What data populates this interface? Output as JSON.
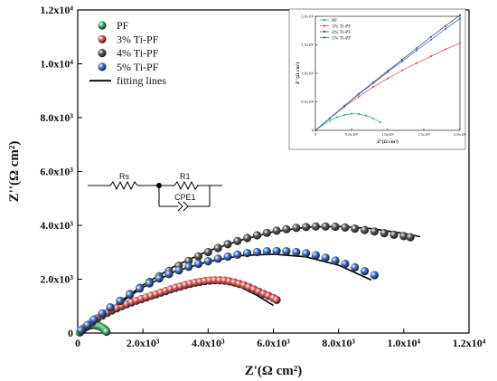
{
  "chart_data": {
    "type": "scatter",
    "title": "",
    "xlabel": "Z'(Ω cm²)",
    "ylabel": "Z''(Ω cm²)",
    "xlim": [
      0,
      12000
    ],
    "ylim": [
      0,
      12000
    ],
    "x_ticks": [
      "0",
      "2.0x10³",
      "4.0x10³",
      "6.0x10³",
      "8.0x10³",
      "1.0x10⁴",
      "1.2x10⁴"
    ],
    "y_ticks": [
      "0",
      "2.0x10³",
      "4.0x10³",
      "6.0x10³",
      "8.0x10³",
      "1.0x10⁴",
      "1.2x10⁴"
    ],
    "legend_position": "top-left",
    "fit_label": "fitting lines",
    "series": [
      {
        "name": "PF",
        "color": "#3cb371",
        "x": [
          60,
          110,
          160,
          210,
          270,
          330,
          390,
          450,
          510,
          570,
          630,
          690,
          740,
          790,
          830,
          860,
          880
        ],
        "y": [
          20,
          80,
          140,
          190,
          235,
          265,
          285,
          295,
          295,
          285,
          265,
          240,
          210,
          175,
          135,
          95,
          50
        ],
        "fit_x": [
          40,
          150,
          300,
          450,
          600,
          750,
          860
        ],
        "fit_y": [
          30,
          160,
          270,
          300,
          275,
          190,
          60
        ]
      },
      {
        "name": "3% Ti-PF",
        "color": "#e05555",
        "x": [
          150,
          300,
          450,
          600,
          750,
          900,
          1050,
          1200,
          1350,
          1500,
          1650,
          1800,
          1950,
          2100,
          2250,
          2400,
          2550,
          2700,
          2850,
          3000,
          3150,
          3300,
          3450,
          3600,
          3750,
          3900,
          4050,
          4200,
          4350,
          4500,
          4650,
          4800,
          4950,
          5100,
          5250,
          5400,
          5550,
          5700,
          5850,
          6000,
          6100
        ],
        "y": [
          150,
          290,
          420,
          540,
          650,
          750,
          840,
          920,
          1000,
          1070,
          1140,
          1200,
          1260,
          1320,
          1380,
          1440,
          1500,
          1560,
          1620,
          1680,
          1730,
          1780,
          1830,
          1870,
          1900,
          1930,
          1950,
          1960,
          1960,
          1950,
          1920,
          1880,
          1830,
          1770,
          1700,
          1620,
          1540,
          1460,
          1380,
          1300,
          1230
        ],
        "fit_x": [
          0,
          500,
          1000,
          1500,
          2000,
          2500,
          3000,
          3500,
          4000,
          4500,
          5000,
          5500,
          6000
        ],
        "fit_y": [
          0,
          450,
          820,
          1100,
          1330,
          1520,
          1680,
          1800,
          1870,
          1860,
          1700,
          1400,
          1030
        ]
      },
      {
        "name": "4% Ti-PF",
        "color": "#555555",
        "x": [
          100,
          300,
          500,
          750,
          1000,
          1300,
          1600,
          1900,
          2200,
          2500,
          2800,
          3100,
          3400,
          3700,
          4000,
          4300,
          4600,
          4900,
          5200,
          5500,
          5800,
          6100,
          6400,
          6700,
          7000,
          7300,
          7600,
          7900,
          8200,
          8500,
          8800,
          9100,
          9400,
          9700,
          10000,
          10200
        ],
        "y": [
          100,
          300,
          500,
          730,
          950,
          1200,
          1450,
          1680,
          1900,
          2110,
          2310,
          2500,
          2680,
          2850,
          3010,
          3160,
          3300,
          3420,
          3530,
          3630,
          3720,
          3800,
          3860,
          3910,
          3940,
          3960,
          3960,
          3950,
          3920,
          3880,
          3830,
          3770,
          3710,
          3650,
          3600,
          3560
        ],
        "fit_x": [
          0,
          1000,
          2000,
          3000,
          4000,
          5000,
          6000,
          7000,
          8000,
          9000,
          10000,
          10500
        ],
        "fit_y": [
          0,
          900,
          1780,
          2500,
          3050,
          3450,
          3760,
          3930,
          3960,
          3880,
          3700,
          3580
        ]
      },
      {
        "name": "5% Ti-PF",
        "color": "#3a6fd1",
        "x": [
          100,
          300,
          500,
          750,
          1000,
          1300,
          1600,
          1900,
          2200,
          2500,
          2800,
          3100,
          3400,
          3700,
          4000,
          4300,
          4600,
          4900,
          5200,
          5500,
          5800,
          6100,
          6400,
          6700,
          7000,
          7300,
          7600,
          7900,
          8200,
          8500,
          8800,
          9100
        ],
        "y": [
          100,
          300,
          500,
          730,
          950,
          1190,
          1430,
          1650,
          1850,
          2030,
          2190,
          2330,
          2460,
          2570,
          2670,
          2760,
          2840,
          2910,
          2970,
          3010,
          3040,
          3050,
          3040,
          3010,
          2960,
          2890,
          2800,
          2690,
          2570,
          2440,
          2300,
          2150
        ],
        "fit_x": [
          0,
          1000,
          2000,
          3000,
          4000,
          5000,
          6000,
          7000,
          8000,
          9000
        ],
        "fit_y": [
          0,
          880,
          1700,
          2300,
          2650,
          2870,
          2930,
          2830,
          2520,
          1970
        ]
      }
    ],
    "inset": {
      "xlabel": "Z'(Ω cm²)",
      "ylabel": "Z''(Ω cm²)",
      "x_ticks": [
        "0",
        "5.0x10²",
        "1.0x10³",
        "1.5x10³",
        "2.0x10³"
      ],
      "y_ticks": [
        "0",
        "5.0x10²",
        "1.0x10³",
        "1.5x10³",
        "2.0x10³"
      ],
      "xlim": [
        0,
        2000
      ],
      "ylim": [
        0,
        2000
      ],
      "legend": [
        "PF",
        "3% Ti-PF",
        "4% Ti-PF",
        "5% Ti-PF"
      ],
      "series": [
        {
          "name": "PF",
          "color": "#3cb371",
          "x": [
            0,
            100,
            200,
            300,
            400,
            500,
            600,
            700,
            800,
            900
          ],
          "y": [
            0,
            90,
            170,
            230,
            270,
            290,
            285,
            260,
            210,
            140
          ]
        },
        {
          "name": "3% Ti-PF",
          "color": "#e05555",
          "x": [
            0,
            200,
            400,
            600,
            800,
            1000,
            1200,
            1400,
            1600,
            1800,
            2000
          ],
          "y": [
            0,
            210,
            410,
            590,
            760,
            910,
            1050,
            1180,
            1300,
            1420,
            1530
          ]
        },
        {
          "name": "4% Ti-PF",
          "color": "#555555",
          "x": [
            0,
            200,
            400,
            600,
            800,
            1000,
            1200,
            1400,
            1600,
            1800,
            2000
          ],
          "y": [
            0,
            215,
            430,
            640,
            840,
            1040,
            1240,
            1440,
            1640,
            1830,
            2020
          ]
        },
        {
          "name": "5% Ti-PF",
          "color": "#3a6fd1",
          "x": [
            0,
            200,
            400,
            600,
            800,
            1000,
            1200,
            1400,
            1600,
            1800,
            2000
          ],
          "y": [
            0,
            212,
            425,
            630,
            825,
            1020,
            1210,
            1400,
            1590,
            1780,
            1960
          ]
        }
      ]
    },
    "circuit": {
      "rs_label": "Rs",
      "r1_label": "R1",
      "cpe_label": "CPE1"
    }
  }
}
